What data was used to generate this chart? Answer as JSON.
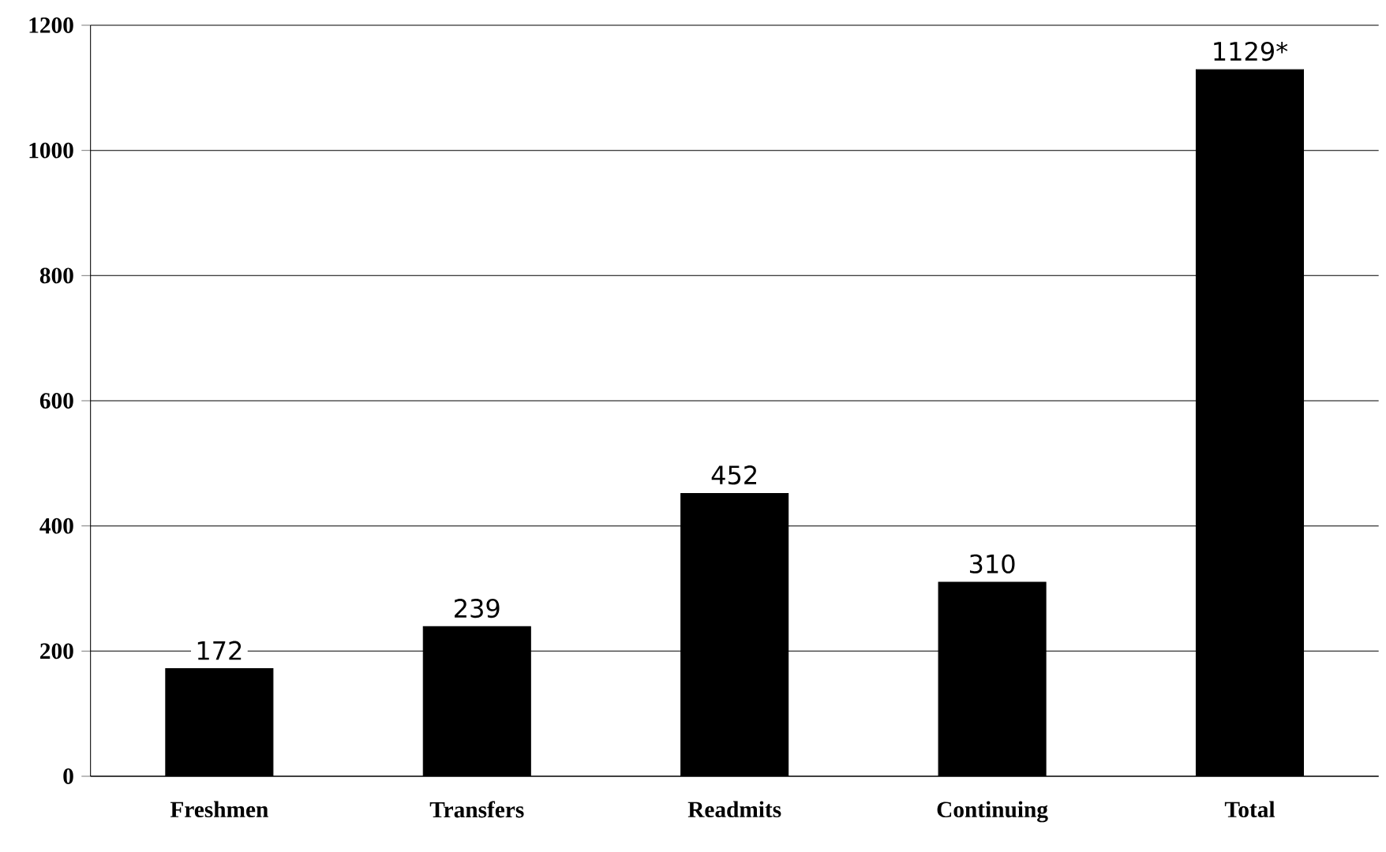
{
  "chart_data": {
    "type": "bar",
    "categories": [
      "Freshmen",
      "Transfers",
      "Readmits",
      "Continuing",
      "Total"
    ],
    "values": [
      172,
      239,
      452,
      310,
      1129
    ],
    "value_labels": [
      "172",
      "239",
      "452",
      "310",
      "1129*"
    ],
    "color": "#000000",
    "ylim": [
      0,
      1200
    ],
    "yticks": [
      0,
      200,
      400,
      600,
      800,
      1000,
      1200
    ],
    "grid": "y"
  }
}
